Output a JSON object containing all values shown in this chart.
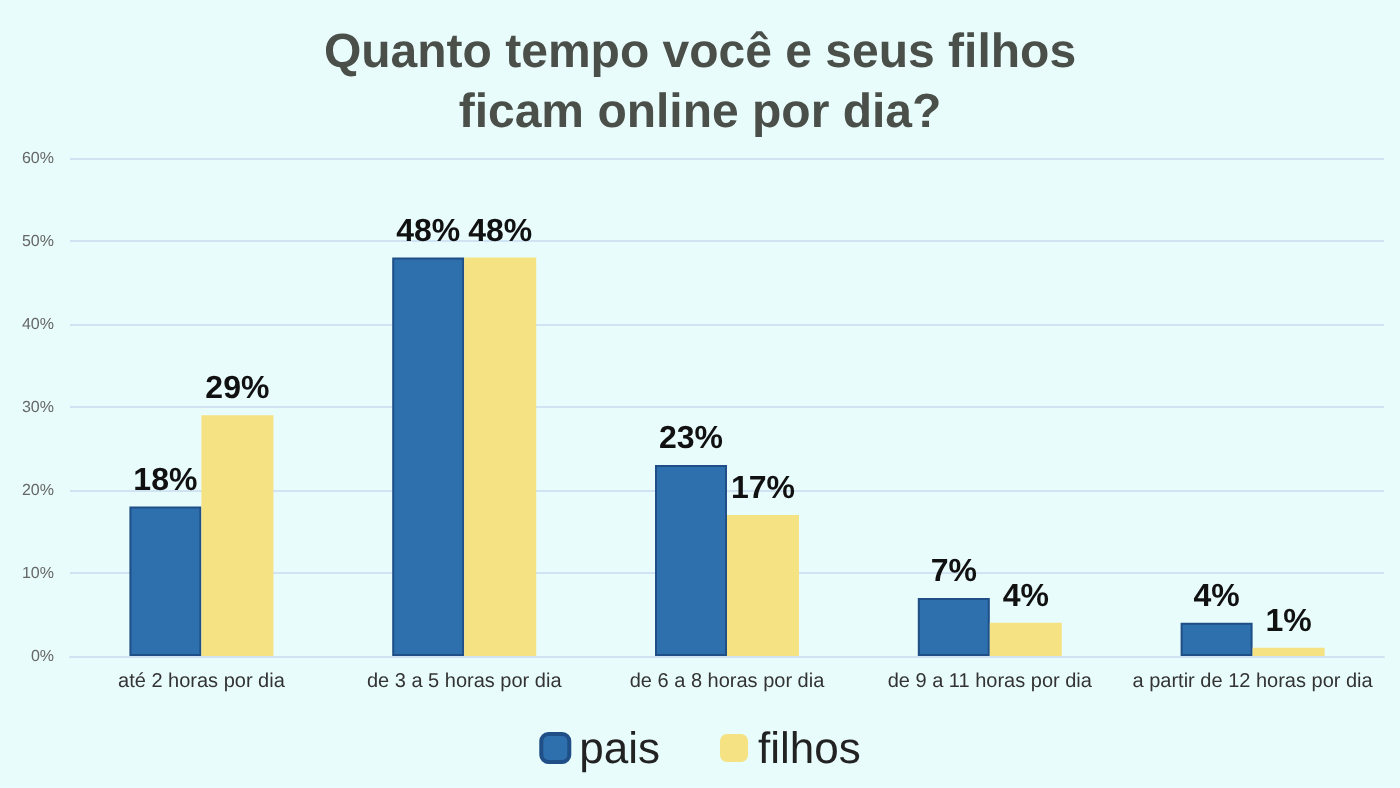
{
  "chart_data": {
    "type": "bar",
    "title": "Quanto tempo você e seus filhos\nficam online por dia?",
    "categories": [
      "até 2 horas por dia",
      "de 3 a 5 horas por dia",
      "de 6 a 8 horas por dia",
      "de 9 a 11 horas por dia",
      "a partir de 12 horas por dia"
    ],
    "series": [
      {
        "name": "pais",
        "color": "#2e6fad",
        "values": [
          18,
          48,
          23,
          7,
          4
        ],
        "value_labels": [
          "18%",
          "48%",
          "23%",
          "7%",
          "4%"
        ]
      },
      {
        "name": "filhos",
        "color": "#f5e282",
        "values": [
          29,
          48,
          17,
          4,
          1
        ],
        "value_labels": [
          "29%",
          "48%",
          "17%",
          "4%",
          "1%"
        ]
      }
    ],
    "ylim": [
      0,
      60
    ],
    "yticks": [
      {
        "value": 0,
        "label": "0%"
      },
      {
        "value": 10,
        "label": "10%"
      },
      {
        "value": 20,
        "label": "20%"
      },
      {
        "value": 30,
        "label": "30%"
      },
      {
        "value": 40,
        "label": "40%"
      },
      {
        "value": 50,
        "label": "50%"
      },
      {
        "value": 60,
        "label": "60%"
      }
    ],
    "grid": "y",
    "legend": "bottom"
  }
}
